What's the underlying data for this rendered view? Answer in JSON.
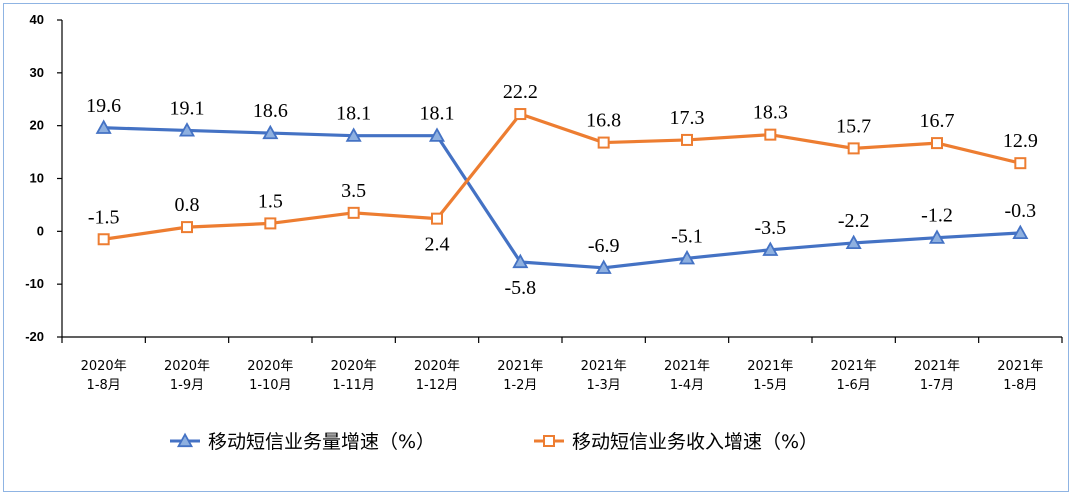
{
  "chart_data": {
    "type": "line",
    "categories": [
      [
        "2020年",
        "1-8月"
      ],
      [
        "2020年",
        "1-9月"
      ],
      [
        "2020年",
        "1-10月"
      ],
      [
        "2020年",
        "1-11月"
      ],
      [
        "2020年",
        "1-12月"
      ],
      [
        "2021年",
        "1-2月"
      ],
      [
        "2021年",
        "1-3月"
      ],
      [
        "2021年",
        "1-4月"
      ],
      [
        "2021年",
        "1-5月"
      ],
      [
        "2021年",
        "1-6月"
      ],
      [
        "2021年",
        "1-7月"
      ],
      [
        "2021年",
        "1-8月"
      ]
    ],
    "series": [
      {
        "name": "移动短信业务量增速（%）",
        "color": "#4472c4",
        "marker": "triangle",
        "values": [
          19.6,
          19.1,
          18.6,
          18.1,
          18.1,
          -5.8,
          -6.9,
          -5.1,
          -3.5,
          -2.2,
          -1.2,
          -0.3
        ]
      },
      {
        "name": "移动短信业务收入增速（%）",
        "color": "#ed7d31",
        "marker": "square",
        "values": [
          -1.5,
          0.8,
          1.5,
          3.5,
          2.4,
          22.2,
          16.8,
          17.3,
          18.3,
          15.7,
          16.7,
          12.9
        ]
      }
    ],
    "ylim": [
      -20,
      40
    ],
    "yticks": [
      -20,
      -10,
      0,
      10,
      20,
      30,
      40
    ],
    "grid": false,
    "legend": "bottom"
  }
}
